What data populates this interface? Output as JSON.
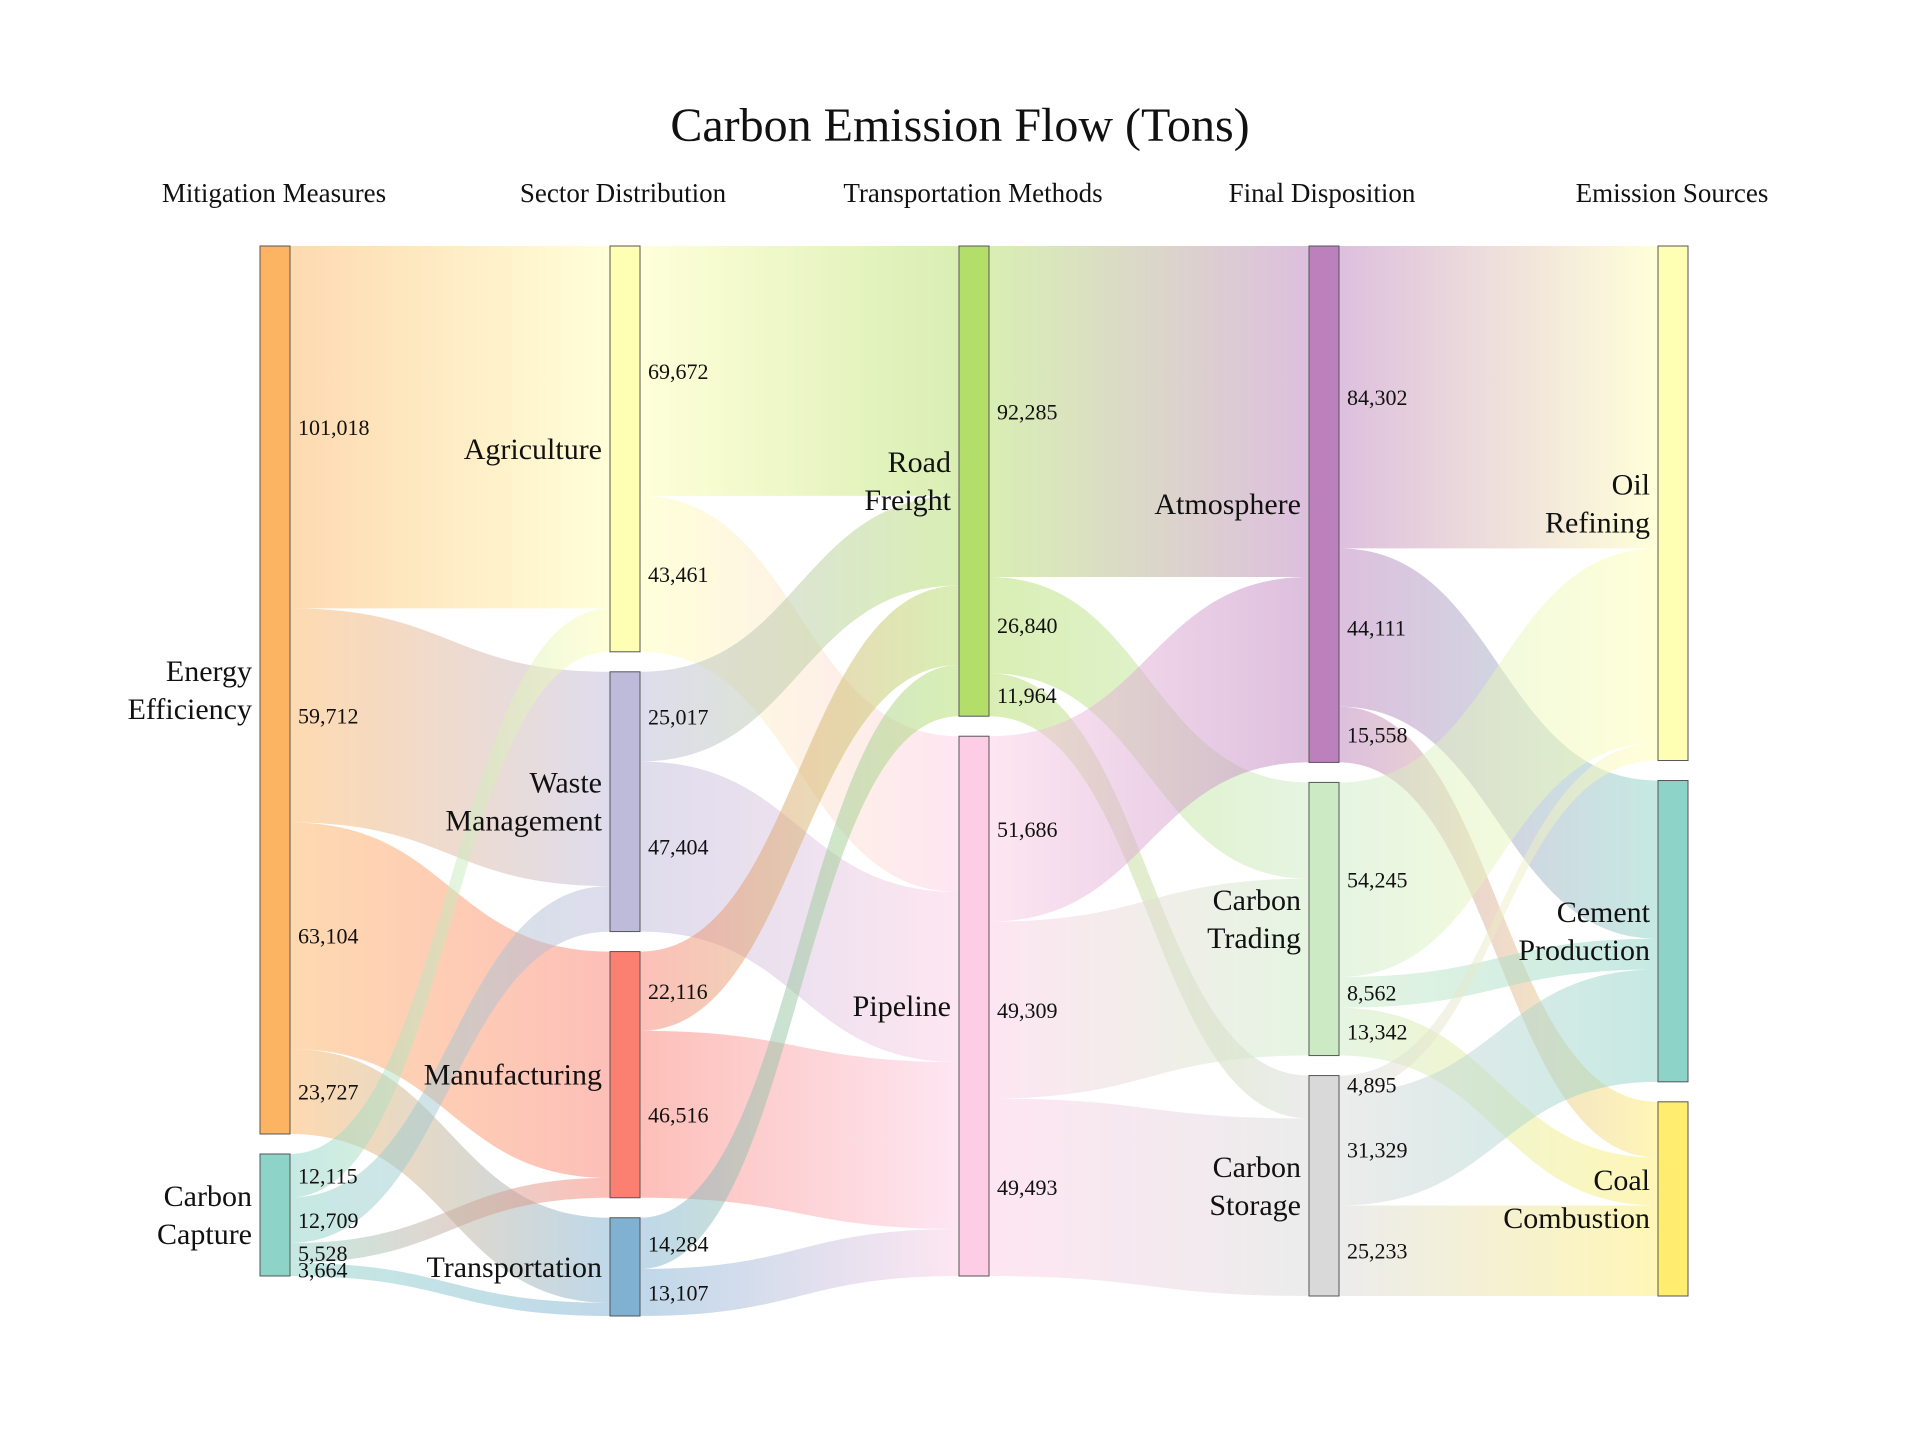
{
  "title": "Carbon Emission Flow (Tons)",
  "columns": [
    "Mitigation Measures",
    "Sector Distribution",
    "Transportation Methods",
    "Final Disposition",
    "Emission Sources"
  ],
  "nodes": [
    {
      "id": "ee",
      "lines": [
        "Energy",
        "Efficiency"
      ],
      "col": 0,
      "color": "#fdb462"
    },
    {
      "id": "cc",
      "lines": [
        "Carbon",
        "Capture"
      ],
      "col": 0,
      "color": "#8dd3c7"
    },
    {
      "id": "ag",
      "lines": [
        "Agriculture"
      ],
      "col": 1,
      "color": "#ffffb3"
    },
    {
      "id": "wm",
      "lines": [
        "Waste",
        "Management"
      ],
      "col": 1,
      "color": "#bebada"
    },
    {
      "id": "mf",
      "lines": [
        "Manufacturing"
      ],
      "col": 1,
      "color": "#fb8072"
    },
    {
      "id": "tr",
      "lines": [
        "Transportation"
      ],
      "col": 1,
      "color": "#80b1d3"
    },
    {
      "id": "rf",
      "lines": [
        "Road",
        "Freight"
      ],
      "col": 2,
      "color": "#b3de69"
    },
    {
      "id": "pl",
      "lines": [
        "Pipeline"
      ],
      "col": 2,
      "color": "#fccde5"
    },
    {
      "id": "at",
      "lines": [
        "Atmosphere"
      ],
      "col": 3,
      "color": "#bc80bd"
    },
    {
      "id": "ct",
      "lines": [
        "Carbon",
        "Trading"
      ],
      "col": 3,
      "color": "#ccebc5"
    },
    {
      "id": "cs",
      "lines": [
        "Carbon",
        "Storage"
      ],
      "col": 3,
      "color": "#d9d9d9"
    },
    {
      "id": "or",
      "lines": [
        "Oil",
        "Refining"
      ],
      "col": 4,
      "color": "#ffffb3"
    },
    {
      "id": "cp",
      "lines": [
        "Cement",
        "Production"
      ],
      "col": 4,
      "color": "#8dd3c7"
    },
    {
      "id": "cb",
      "lines": [
        "Coal",
        "Combustion"
      ],
      "col": 4,
      "color": "#ffed6f"
    }
  ],
  "links": [
    {
      "source": "ee",
      "target": "ag",
      "value": 101018,
      "label": "101,018"
    },
    {
      "source": "ee",
      "target": "wm",
      "value": 59712,
      "label": "59,712"
    },
    {
      "source": "ee",
      "target": "mf",
      "value": 63104,
      "label": "63,104"
    },
    {
      "source": "ee",
      "target": "tr",
      "value": 23727,
      "label": "23,727"
    },
    {
      "source": "cc",
      "target": "ag",
      "value": 12115,
      "label": "12,115"
    },
    {
      "source": "cc",
      "target": "wm",
      "value": 12709,
      "label": "12,709"
    },
    {
      "source": "cc",
      "target": "mf",
      "value": 5528,
      "label": "5,528"
    },
    {
      "source": "cc",
      "target": "tr",
      "value": 3664,
      "label": "3,664"
    },
    {
      "source": "ag",
      "target": "rf",
      "value": 69672,
      "label": "69,672"
    },
    {
      "source": "ag",
      "target": "pl",
      "value": 43461,
      "label": "43,461"
    },
    {
      "source": "wm",
      "target": "rf",
      "value": 25017,
      "label": "25,017"
    },
    {
      "source": "wm",
      "target": "pl",
      "value": 47404,
      "label": "47,404"
    },
    {
      "source": "mf",
      "target": "rf",
      "value": 22116,
      "label": "22,116"
    },
    {
      "source": "mf",
      "target": "pl",
      "value": 46516,
      "label": "46,516"
    },
    {
      "source": "tr",
      "target": "rf",
      "value": 14284,
      "label": "14,284"
    },
    {
      "source": "tr",
      "target": "pl",
      "value": 13107,
      "label": "13,107"
    },
    {
      "source": "rf",
      "target": "at",
      "value": 92285,
      "label": "92,285"
    },
    {
      "source": "rf",
      "target": "ct",
      "value": 26840,
      "label": "26,840"
    },
    {
      "source": "rf",
      "target": "cs",
      "value": 11964,
      "label": "11,964"
    },
    {
      "source": "pl",
      "target": "at",
      "value": 51686,
      "label": "51,686"
    },
    {
      "source": "pl",
      "target": "ct",
      "value": 49309,
      "label": "49,309"
    },
    {
      "source": "pl",
      "target": "cs",
      "value": 49493,
      "label": "49,493"
    },
    {
      "source": "at",
      "target": "or",
      "value": 84302,
      "label": "84,302"
    },
    {
      "source": "at",
      "target": "cp",
      "value": 44111,
      "label": "44,111"
    },
    {
      "source": "at",
      "target": "cb",
      "value": 15558,
      "label": "15,558"
    },
    {
      "source": "ct",
      "target": "or",
      "value": 54245,
      "label": "54,245"
    },
    {
      "source": "ct",
      "target": "cp",
      "value": 8562,
      "label": "8,562"
    },
    {
      "source": "ct",
      "target": "cb",
      "value": 13342,
      "label": "13,342"
    },
    {
      "source": "cs",
      "target": "or",
      "value": 4895,
      "label": "4,895"
    },
    {
      "source": "cs",
      "target": "cp",
      "value": 31329,
      "label": "31,329"
    },
    {
      "source": "cs",
      "target": "cb",
      "value": 25233,
      "label": "25,233"
    }
  ]
}
